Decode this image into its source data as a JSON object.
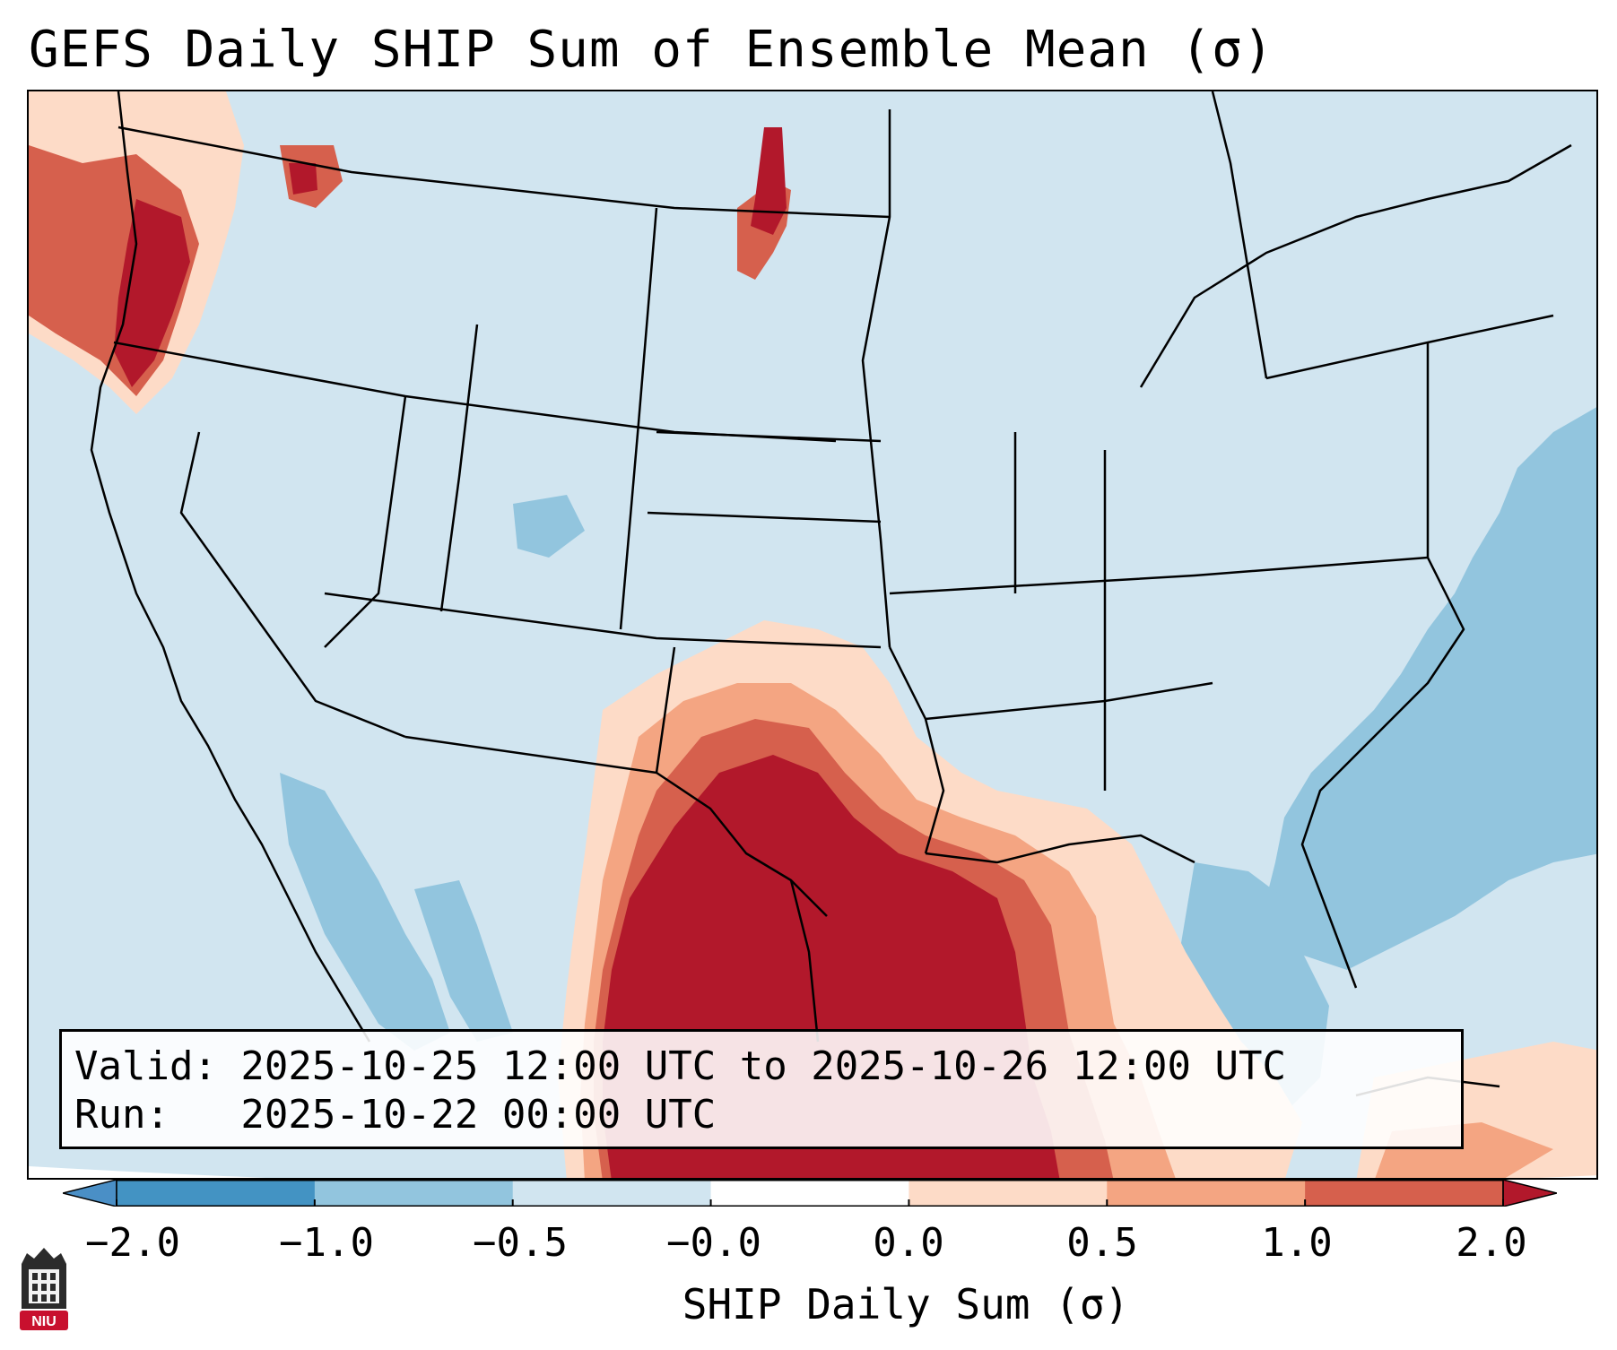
{
  "title": "GEFS Daily SHIP Sum of Ensemble Mean (σ)",
  "info": {
    "valid_line": "Valid: 2025-10-25 12:00 UTC to 2025-10-26 12:00 UTC",
    "run_line": "Run:   2025-10-22 00:00 UTC"
  },
  "colorbar": {
    "label": "SHIP Daily Sum (σ)",
    "ticks": [
      "−2.0",
      "−1.0",
      "−0.5",
      "−0.0",
      "0.0",
      "0.5",
      "1.0",
      "2.0"
    ],
    "bins": [
      {
        "range": "< -2.0",
        "color": "#4a8fc6"
      },
      {
        "range": "-2.0 to -1.0",
        "color": "#4393c3"
      },
      {
        "range": "-1.0 to -0.5",
        "color": "#92c5de"
      },
      {
        "range": "-0.5 to -0.0",
        "color": "#d1e5f0"
      },
      {
        "range": "-0.0 to 0.0",
        "color": "#ffffff"
      },
      {
        "range": "0.0 to 0.5",
        "color": "#fddbc7"
      },
      {
        "range": "0.5 to 1.0",
        "color": "#f4a582"
      },
      {
        "range": "1.0 to 2.0",
        "color": "#d6604d"
      },
      {
        "range": "> 2.0",
        "color": "#b2182b"
      }
    ]
  },
  "map": {
    "region": "Contiguous United States",
    "projection": "Lambert conformal",
    "background_level": "-0.5 to -0.0",
    "features": [
      {
        "area": "Pacific Northwest coast (Washington/Oregon)",
        "level": "1.0 to > 2.0"
      },
      {
        "area": "Southern Plains / Texas / Louisiana / northwestern Gulf",
        "level": "> 2.0"
      },
      {
        "area": "Western Minnesota / eastern North Dakota",
        "level": "1.0 to > 2.0"
      },
      {
        "area": "Western Atlantic offshore",
        "level": "-1.0 to -0.5"
      },
      {
        "area": "Gulf of California / northwest Mexico",
        "level": "-1.0 to -0.5"
      }
    ]
  },
  "logo": {
    "text": "NIU",
    "color": "#c8102e"
  }
}
